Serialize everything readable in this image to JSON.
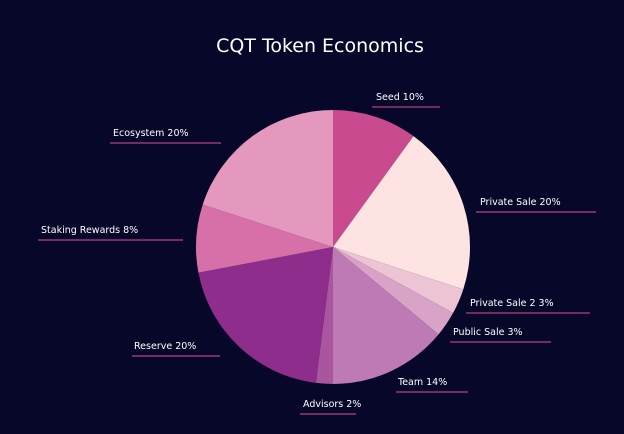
{
  "chart_data": {
    "type": "pie",
    "title": "CQT Token Economics",
    "slices": [
      {
        "label": "Seed 10%",
        "value": 10,
        "color": "#c94a8e"
      },
      {
        "label": "Private Sale 20%",
        "value": 20,
        "color": "#fde3e2"
      },
      {
        "label": "Private Sale 2 3%",
        "value": 3,
        "color": "#ecc4d4"
      },
      {
        "label": "Public Sale 3%",
        "value": 3,
        "color": "#d9a3c7"
      },
      {
        "label": "Team 14%",
        "value": 14,
        "color": "#bd7ab4"
      },
      {
        "label": "Advisors 2%",
        "value": 2,
        "color": "#a9569f"
      },
      {
        "label": "Reserve 20%",
        "value": 20,
        "color": "#8e2d8c"
      },
      {
        "label": "Staking Rewards 8%",
        "value": 8,
        "color": "#d770a8"
      },
      {
        "label": "Ecosystem 20%",
        "value": 20,
        "color": "#e598bd"
      }
    ],
    "legend": "none"
  }
}
